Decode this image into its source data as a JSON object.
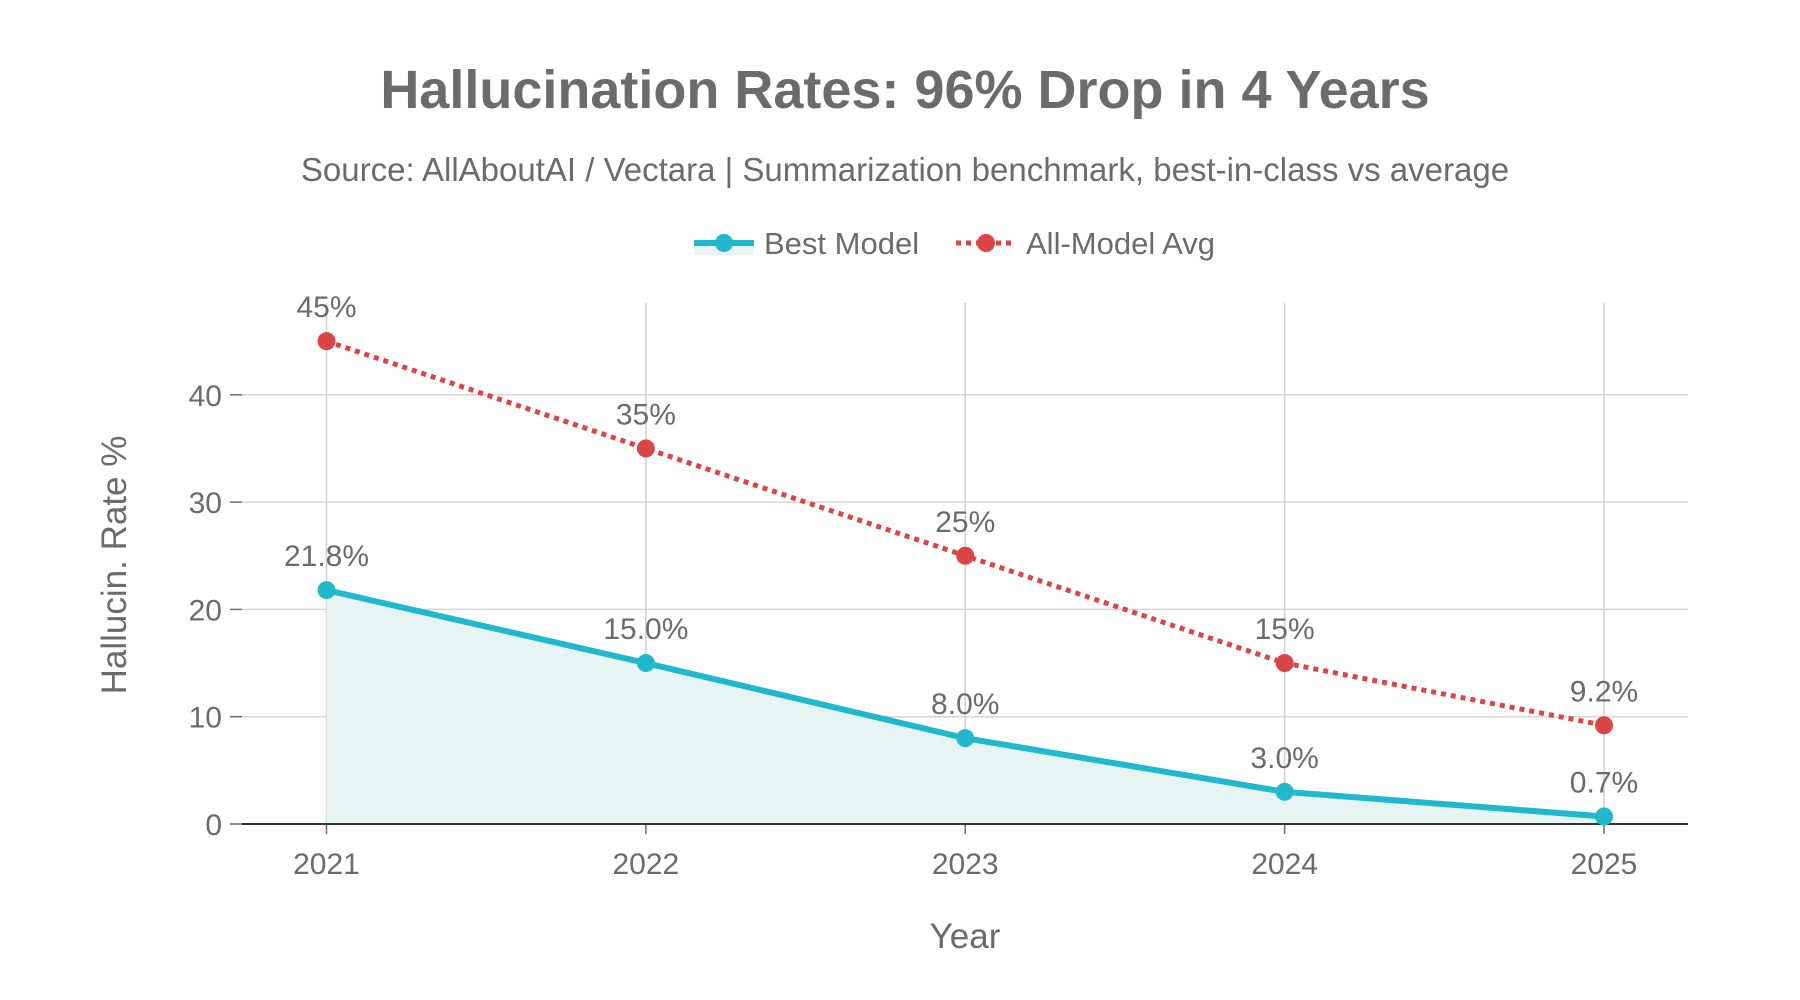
{
  "chart_data": {
    "type": "line",
    "title": "Hallucination Rates: 96% Drop in 4 Years",
    "subtitle": "Source: AllAboutAI / Vectara | Summarization benchmark, best-in-class vs average",
    "xlabel": "Year",
    "ylabel": "Hallucin. Rate %",
    "categories": [
      "2021",
      "2022",
      "2023",
      "2024",
      "2025"
    ],
    "ylim": [
      0,
      48
    ],
    "yticks": [
      0,
      10,
      20,
      30,
      40
    ],
    "grid": true,
    "legend_position": "top-center",
    "series": [
      {
        "name": "Best Model",
        "values": [
          21.8,
          15.0,
          8.0,
          3.0,
          0.7
        ],
        "labels": [
          "21.8%",
          "15.0%",
          "8.0%",
          "3.0%",
          "0.7%"
        ],
        "color": "#1FB8CD",
        "fill": "#E6F5F4",
        "style": "solid",
        "area": true
      },
      {
        "name": "All-Model Avg",
        "values": [
          45,
          35,
          25,
          15,
          9.2
        ],
        "labels": [
          "45%",
          "35%",
          "25%",
          "15%",
          "9.2%"
        ],
        "color": "#DB4545",
        "style": "dotted",
        "area": false
      }
    ]
  }
}
